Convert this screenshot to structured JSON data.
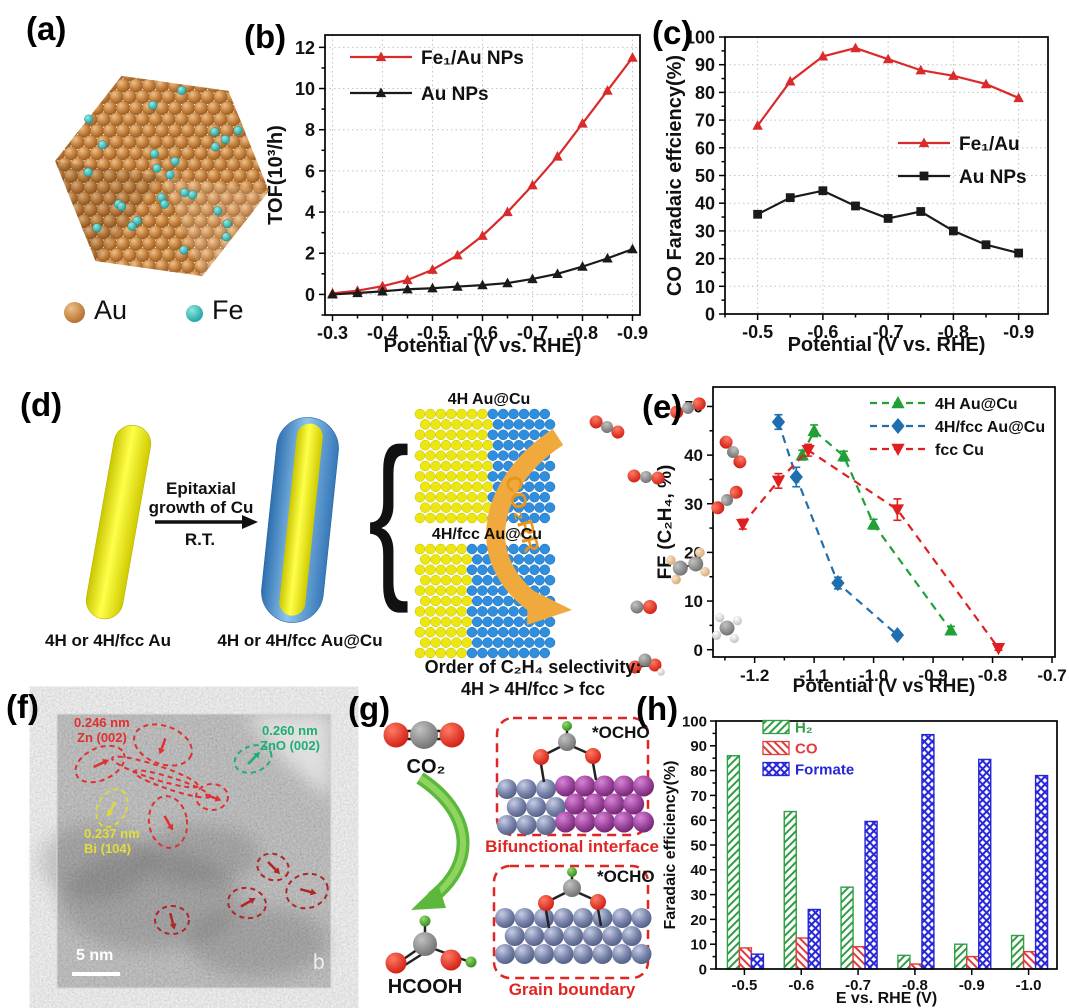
{
  "colors": {
    "au_sphere": "#c5823e",
    "fe_sphere": "#2fb0b0",
    "rod_yellow": "#f2ee14",
    "cu_blue": "#4a8fd0",
    "co2rr_orange": "#f0a93c",
    "co2rr_text": "#e8951d",
    "green_arrow": "#5cb83c",
    "interface_purple": "#9c449c",
    "metal_slate": "#7782a8",
    "ann_red": "#e03030",
    "ann_green": "#1fae72",
    "ann_yellow": "#e3dd3a",
    "box_red": "#e02525",
    "series_red": "#d92b2b",
    "series_black": "#1a1a1a",
    "series_green": "#22a038",
    "series_blue": "#1f6fb0",
    "bar_green": "#2f9e44",
    "bar_red": "#e03c3c",
    "bar_blue": "#2626d8"
  },
  "panels": {
    "a": {
      "label": "(a)"
    },
    "b": {
      "label": "(b)"
    },
    "c": {
      "label": "(c)"
    },
    "d": {
      "label": "(d)"
    },
    "e": {
      "label": "(e)"
    },
    "f": {
      "label": "(f)"
    },
    "g": {
      "label": "(g)"
    },
    "h": {
      "label": "(h)"
    }
  },
  "legend_a": {
    "au": "Au",
    "fe": "Fe"
  },
  "d": {
    "epitaxial1": "Epitaxial",
    "epitaxial2": "growth of Cu",
    "rt": "R.T.",
    "rod1": "4H or 4H/fcc Au",
    "rod2": "4H or 4H/fcc Au@Cu",
    "slab1": "4H Au@Cu",
    "slab2": "4H/fcc Au@Cu",
    "co2rr": "CO₂RR",
    "order1": "Order of C₂H₄ selectivity:",
    "order2": "4H > 4H/fcc > fcc"
  },
  "f": {
    "ann_zn1": "0.246 nm",
    "ann_zn2": "Zn (002)",
    "ann_zno1": "0.260 nm",
    "ann_zno2": "ZnO (002)",
    "ann_bi1": "0.237 nm",
    "ann_bi2": "Bi (104)",
    "scalebar": "5 nm",
    "corner": "b"
  },
  "g": {
    "co2": "CO₂",
    "hcooh": "HCOOH",
    "ocho1": "*OCHO",
    "ocho2": "*OCHO",
    "cap1": "Bifunctional interface",
    "cap2": "Grain boundary"
  },
  "chart_data": [
    {
      "panel": "b",
      "type": "line",
      "xlabel": "Potential (V vs. RHE)",
      "ylabel": "TOF(10³/h)",
      "xlim": [
        -0.285,
        -0.915
      ],
      "ylim": [
        -1.0,
        12.6
      ],
      "xticks": [
        -0.3,
        -0.4,
        -0.5,
        -0.6,
        -0.7,
        -0.8,
        -0.9
      ],
      "yticks": [
        0,
        2,
        4,
        6,
        8,
        10,
        12
      ],
      "grid": true,
      "legend_position": "top-left",
      "series": [
        {
          "name": "Fe₁/Au NPs",
          "color": "#d92b2b",
          "marker": "tri-up",
          "dashed": false,
          "x": [
            -0.3,
            -0.35,
            -0.4,
            -0.45,
            -0.5,
            -0.55,
            -0.6,
            -0.65,
            -0.7,
            -0.75,
            -0.8,
            -0.85,
            -0.9
          ],
          "y": [
            0.05,
            0.18,
            0.4,
            0.7,
            1.2,
            1.9,
            2.85,
            4.0,
            5.3,
            6.7,
            8.3,
            9.9,
            11.5
          ]
        },
        {
          "name": "Au NPs",
          "color": "#1a1a1a",
          "marker": "tri-up",
          "dashed": false,
          "x": [
            -0.3,
            -0.35,
            -0.4,
            -0.45,
            -0.5,
            -0.55,
            -0.6,
            -0.65,
            -0.7,
            -0.75,
            -0.8,
            -0.85,
            -0.9
          ],
          "y": [
            0.0,
            0.07,
            0.15,
            0.25,
            0.3,
            0.38,
            0.45,
            0.55,
            0.75,
            1.0,
            1.35,
            1.75,
            2.2
          ]
        }
      ]
    },
    {
      "panel": "c",
      "type": "line",
      "xlabel": "Potential (V vs. RHE)",
      "ylabel": "CO Faradaic effciency(%)",
      "xlim": [
        -0.45,
        -0.945
      ],
      "ylim": [
        0,
        100
      ],
      "xticks": [
        -0.5,
        -0.6,
        -0.7,
        -0.8,
        -0.9
      ],
      "yticks": [
        0,
        10,
        20,
        30,
        40,
        50,
        60,
        70,
        80,
        90,
        100
      ],
      "grid": true,
      "legend_position": "middle-right",
      "series": [
        {
          "name": "Fe₁/Au",
          "color": "#d92b2b",
          "marker": "tri-up",
          "dashed": false,
          "x": [
            -0.5,
            -0.55,
            -0.6,
            -0.65,
            -0.7,
            -0.75,
            -0.8,
            -0.85,
            -0.9
          ],
          "y": [
            68,
            84,
            93,
            96,
            92,
            88,
            86,
            83,
            78
          ]
        },
        {
          "name": "Au NPs",
          "color": "#1a1a1a",
          "marker": "square",
          "dashed": false,
          "x": [
            -0.5,
            -0.55,
            -0.6,
            -0.65,
            -0.7,
            -0.75,
            -0.8,
            -0.85,
            -0.9
          ],
          "y": [
            36,
            42,
            44.5,
            39,
            34.5,
            37,
            30,
            25,
            22
          ]
        }
      ]
    },
    {
      "panel": "e",
      "type": "line",
      "xlabel": "Potential (V vs RHE)",
      "ylabel": "FE (C₂H₄, %)",
      "xlim": [
        -1.27,
        -0.695
      ],
      "ylim": [
        -1.5,
        54
      ],
      "xticks": [
        -1.2,
        -1.1,
        -1.0,
        -0.9,
        -0.8,
        -0.7
      ],
      "yticks": [
        0,
        10,
        20,
        30,
        40,
        50
      ],
      "grid": false,
      "legend_position": "top-right",
      "series": [
        {
          "name": "4H Au@Cu",
          "color": "#22a038",
          "marker": "tri-up",
          "dashed": true,
          "x": [
            -1.12,
            -1.1,
            -1.05,
            -1.0,
            -0.87
          ],
          "y": [
            40,
            45,
            39.8,
            25.8,
            4
          ],
          "yerr": [
            1,
            1.2,
            1,
            1,
            0.8
          ]
        },
        {
          "name": "4H/fcc Au@Cu",
          "color": "#1f6fb0",
          "marker": "diamond",
          "dashed": true,
          "x": [
            -1.16,
            -1.13,
            -1.06,
            -0.96
          ],
          "y": [
            46.8,
            35.5,
            13.7,
            3
          ],
          "yerr": [
            1.5,
            2,
            1.2,
            0.5
          ]
        },
        {
          "name": "fcc Cu",
          "color": "#e02020",
          "marker": "tri-down",
          "dashed": true,
          "x": [
            -1.22,
            -1.16,
            -1.11,
            -0.96,
            -0.79
          ],
          "y": [
            25.8,
            34.7,
            41,
            28.8,
            0.3
          ],
          "yerr": [
            1,
            1.5,
            1.2,
            2.2,
            0.4
          ]
        }
      ]
    },
    {
      "panel": "h",
      "type": "bar",
      "xlabel": "E vs. RHE (V)",
      "ylabel": "Faradaic efficiency(%)",
      "categories": [
        "-0.5",
        "-0.6",
        "-0.7",
        "-0.8",
        "-0.9",
        "-1.0"
      ],
      "ylim": [
        0,
        100
      ],
      "yticks": [
        0,
        10,
        20,
        30,
        40,
        50,
        60,
        70,
        80,
        90,
        100
      ],
      "grid": false,
      "legend_position": "top-left",
      "series": [
        {
          "name": "H₂",
          "color": "#2f9e44",
          "hatch": "diag1",
          "values": [
            86,
            63.5,
            33,
            5.5,
            10,
            13.5
          ]
        },
        {
          "name": "CO",
          "color": "#e03c3c",
          "hatch": "diag2",
          "values": [
            8.5,
            12.5,
            9,
            2,
            5,
            7
          ]
        },
        {
          "name": "Formate",
          "color": "#2626d8",
          "hatch": "cross",
          "values": [
            6,
            24,
            59.5,
            94.5,
            84.5,
            78
          ]
        }
      ]
    }
  ]
}
